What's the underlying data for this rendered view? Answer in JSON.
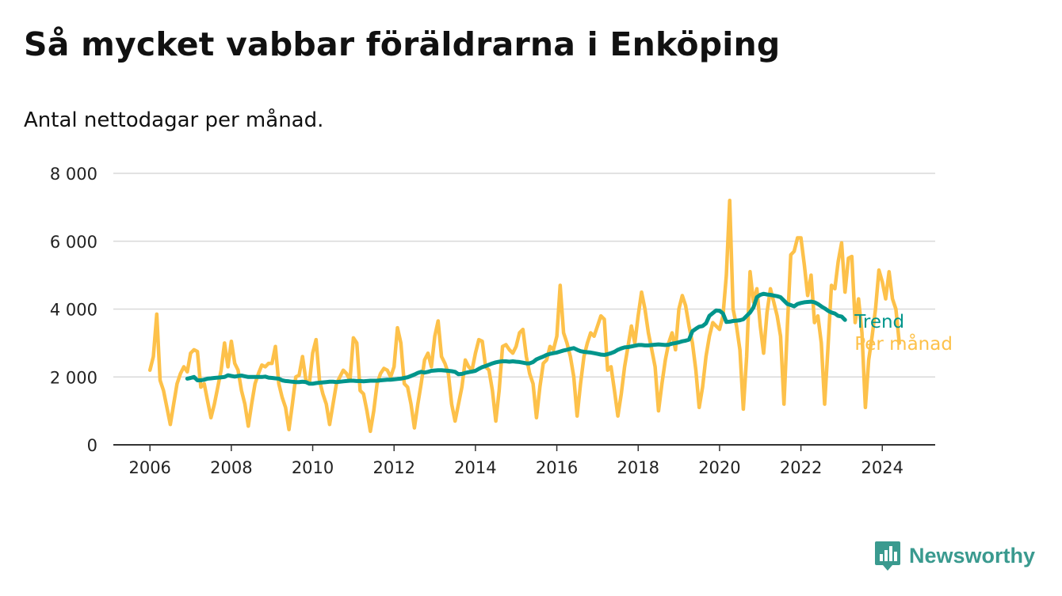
{
  "title": "Så mycket vabbar föräldrarna i Enköping",
  "subtitle": "Antal nettodagar per månad.",
  "brand": {
    "name": "Newsworthy",
    "icon": "newsworthy-logo-icon"
  },
  "colors": {
    "monthly": "#fdc14a",
    "trend": "#00958b",
    "grid": "#d9d9d9",
    "axis": "#333333"
  },
  "chart_data": {
    "type": "line",
    "title": "Så mycket vabbar föräldrarna i Enköping",
    "ylabel": "Antal nettodagar per månad.",
    "xlabel": "",
    "ylim": [
      0,
      8000
    ],
    "xlim": [
      2005.1,
      2025.3
    ],
    "y_ticks": [
      0,
      2000,
      4000,
      6000,
      8000
    ],
    "y_tick_labels": [
      "0",
      "2 000",
      "4 000",
      "6 000",
      "8 000"
    ],
    "x_ticks": [
      2006,
      2008,
      2010,
      2012,
      2014,
      2016,
      2018,
      2020,
      2022,
      2024
    ],
    "x_tick_labels": [
      "2006",
      "2008",
      "2010",
      "2012",
      "2014",
      "2016",
      "2018",
      "2020",
      "2022",
      "2024"
    ],
    "grid": true,
    "series": [
      {
        "name": "Per månad",
        "label": "Per månad",
        "start": 2006.0,
        "step": 0.0833333,
        "values": [
          2200,
          2600,
          3850,
          1900,
          1600,
          1100,
          600,
          1200,
          1800,
          2100,
          2300,
          2150,
          2700,
          2800,
          2750,
          1700,
          1800,
          1300,
          800,
          1200,
          1700,
          2200,
          3000,
          2300,
          3050,
          2400,
          2200,
          1600,
          1200,
          550,
          1200,
          1800,
          2100,
          2350,
          2300,
          2400,
          2400,
          2900,
          1800,
          1400,
          1100,
          450,
          1200,
          2000,
          2050,
          2600,
          1900,
          1800,
          2700,
          3100,
          1900,
          1500,
          1200,
          600,
          1200,
          1800,
          2000,
          2200,
          2100,
          1900,
          3150,
          3000,
          1600,
          1500,
          1000,
          400,
          1000,
          1800,
          2100,
          2250,
          2200,
          2000,
          2300,
          3450,
          3000,
          1800,
          1700,
          1200,
          500,
          1200,
          1800,
          2500,
          2700,
          2300,
          3200,
          3650,
          2600,
          2400,
          2100,
          1200,
          700,
          1200,
          1700,
          2500,
          2300,
          2200,
          2700,
          3100,
          3050,
          2300,
          2200,
          1600,
          700,
          1600,
          2900,
          2950,
          2800,
          2700,
          2900,
          3300,
          3400,
          2600,
          2100,
          1800,
          800,
          1700,
          2400,
          2500,
          2900,
          2800,
          3200,
          4700,
          3300,
          3000,
          2600,
          2000,
          850,
          1800,
          2600,
          3000,
          3300,
          3200,
          3500,
          3800,
          3700,
          2200,
          2300,
          1600,
          850,
          1500,
          2300,
          2900,
          3500,
          3000,
          3800,
          4500,
          4000,
          3300,
          2800,
          2300,
          1000,
          1800,
          2500,
          3000,
          3300,
          2800,
          4000,
          4400,
          4100,
          3500,
          3000,
          2200,
          1100,
          1700,
          2600,
          3200,
          3600,
          3500,
          3400,
          3800,
          5000,
          7200,
          4000,
          3500,
          2800,
          1050,
          2600,
          5100,
          4200,
          4600,
          3500,
          2700,
          3900,
          4600,
          4200,
          3800,
          3200,
          1200,
          3500,
          5600,
          5700,
          6100,
          6100,
          5300,
          4400,
          5000,
          3600,
          3800,
          3000,
          1200,
          2900,
          4700,
          4600,
          5400,
          5950,
          4500,
          5500,
          5550,
          3600,
          4300,
          3300,
          1100,
          2500,
          3200,
          4000,
          5150,
          4800,
          4300,
          5100,
          4300,
          4000,
          3000
        ]
      },
      {
        "name": "Trend",
        "label": "Trend",
        "start": 2006.9167,
        "step": 0.0833333,
        "values": [
          1950,
          1970,
          2000,
          1900,
          1900,
          1920,
          1950,
          1960,
          1970,
          1980,
          1990,
          2000,
          2050,
          2030,
          2010,
          2030,
          2040,
          2020,
          2000,
          2000,
          2000,
          2000,
          2000,
          2010,
          1980,
          1970,
          1960,
          1950,
          1900,
          1880,
          1870,
          1860,
          1850,
          1850,
          1860,
          1850,
          1800,
          1800,
          1820,
          1830,
          1840,
          1850,
          1860,
          1860,
          1850,
          1860,
          1870,
          1880,
          1890,
          1890,
          1880,
          1880,
          1870,
          1880,
          1890,
          1890,
          1890,
          1900,
          1910,
          1920,
          1920,
          1930,
          1940,
          1950,
          1970,
          1990,
          2030,
          2070,
          2120,
          2150,
          2130,
          2150,
          2180,
          2190,
          2200,
          2200,
          2190,
          2180,
          2170,
          2150,
          2080,
          2090,
          2120,
          2140,
          2160,
          2180,
          2240,
          2290,
          2320,
          2360,
          2400,
          2430,
          2450,
          2460,
          2460,
          2450,
          2460,
          2450,
          2440,
          2420,
          2400,
          2400,
          2440,
          2520,
          2560,
          2600,
          2650,
          2680,
          2700,
          2720,
          2750,
          2780,
          2800,
          2830,
          2850,
          2800,
          2760,
          2740,
          2730,
          2720,
          2700,
          2680,
          2660,
          2650,
          2670,
          2700,
          2740,
          2800,
          2840,
          2870,
          2880,
          2900,
          2920,
          2940,
          2940,
          2930,
          2930,
          2940,
          2950,
          2960,
          2950,
          2940,
          2950,
          2980,
          3000,
          3020,
          3050,
          3070,
          3100,
          3350,
          3420,
          3480,
          3500,
          3580,
          3800,
          3880,
          3960,
          3950,
          3870,
          3620,
          3630,
          3650,
          3660,
          3670,
          3700,
          3800,
          3900,
          4050,
          4350,
          4420,
          4450,
          4430,
          4420,
          4400,
          4380,
          4350,
          4250,
          4150,
          4120,
          4080,
          4150,
          4180,
          4200,
          4210,
          4220,
          4200,
          4150,
          4080,
          4020,
          3950,
          3900,
          3870,
          3800,
          3780,
          3680
        ]
      }
    ]
  }
}
